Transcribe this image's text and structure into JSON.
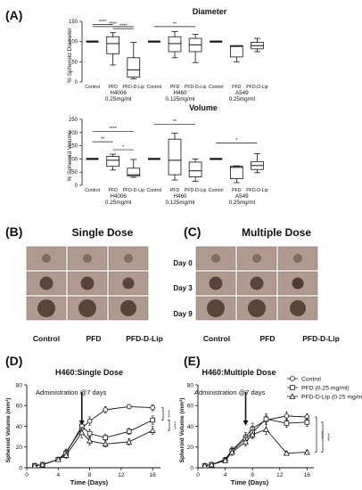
{
  "panels": {
    "A": "(A)",
    "B": "(B)",
    "C": "(C)",
    "D": "(D)",
    "E": "(E)"
  },
  "photo_grid": {
    "single_title": "Single Dose",
    "multiple_title": "Multiple Dose",
    "days": [
      "Day 0",
      "Day 3",
      "Day 9"
    ],
    "columns": [
      "Control",
      "PFD",
      "PFD-D-Lip"
    ]
  },
  "chart_data": [
    {
      "type": "box",
      "title": "Diameter",
      "ylabel": "% Spheroid Diameter",
      "ylim": [
        0,
        150
      ],
      "yticks": [
        0,
        50,
        100,
        150
      ],
      "groups": [
        {
          "label_line1": "H4006",
          "label_line2": "0.25mg/ml",
          "categories": [
            "Control",
            "PFD",
            "PFD-D-Lip"
          ],
          "boxes": [
            {
              "min": 100,
              "q1": 100,
              "median": 100,
              "q3": 100,
              "max": 100
            },
            {
              "min": 42,
              "q1": 70,
              "median": 95,
              "q3": 112,
              "max": 122
            },
            {
              "min": 8,
              "q1": 12,
              "median": 30,
              "q3": 60,
              "max": 98
            }
          ]
        },
        {
          "label_line1": "H460",
          "label_line2": "0.125mg/ml",
          "categories": [
            "Control",
            "PFD",
            "PFD-D-Lip"
          ],
          "boxes": [
            {
              "min": 100,
              "q1": 100,
              "median": 100,
              "q3": 100,
              "max": 100
            },
            {
              "min": 60,
              "q1": 75,
              "median": 95,
              "q3": 112,
              "max": 125
            },
            {
              "min": 48,
              "q1": 75,
              "median": 92,
              "q3": 108,
              "max": 118
            }
          ]
        },
        {
          "label_line1": "A549",
          "label_line2": "0.25mg/ml",
          "categories": [
            "Control",
            "PFD",
            "PFD-D-Lip"
          ],
          "boxes": [
            {
              "min": 100,
              "q1": 100,
              "median": 100,
              "q3": 100,
              "max": 100
            },
            {
              "min": 50,
              "q1": 62,
              "median": 88,
              "q3": 90,
              "max": 90
            },
            {
              "min": 75,
              "q1": 82,
              "median": 90,
              "q3": 98,
              "max": 108
            }
          ]
        }
      ],
      "significance": [
        {
          "from": [
            0,
            0
          ],
          "to": [
            0,
            1
          ],
          "label": "****",
          "y": 142
        },
        {
          "from": [
            0,
            0
          ],
          "to": [
            0,
            2
          ],
          "label": "****",
          "y": 137
        },
        {
          "from": [
            0,
            1
          ],
          "to": [
            0,
            2
          ],
          "label": "****",
          "y": 132
        },
        {
          "from": [
            1,
            0
          ],
          "to": [
            1,
            2
          ],
          "label": "**",
          "y": 137
        }
      ]
    },
    {
      "type": "box",
      "title": "Volume",
      "ylabel": "% Spheroid Volume",
      "ylim": [
        0,
        250
      ],
      "yticks": [
        0,
        50,
        100,
        150,
        200,
        250
      ],
      "groups": [
        {
          "label_line1": "H4006",
          "label_line2": "0.25mg/ml",
          "categories": [
            "Control",
            "PFD",
            "PFD-D-Lip"
          ],
          "boxes": [
            {
              "min": 100,
              "q1": 100,
              "median": 100,
              "q3": 100,
              "max": 100
            },
            {
              "min": 58,
              "q1": 72,
              "median": 95,
              "q3": 110,
              "max": 118
            },
            {
              "min": 30,
              "q1": 35,
              "median": 40,
              "q3": 65,
              "max": 98
            }
          ]
        },
        {
          "label_line1": "H460",
          "label_line2": "0.125mg/ml",
          "categories": [
            "Control",
            "PFD",
            "PFD-D-Lip"
          ],
          "boxes": [
            {
              "min": 100,
              "q1": 100,
              "median": 100,
              "q3": 100,
              "max": 100
            },
            {
              "min": 20,
              "q1": 40,
              "median": 95,
              "q3": 175,
              "max": 198
            },
            {
              "min": 15,
              "q1": 32,
              "median": 55,
              "q3": 88,
              "max": 100
            }
          ]
        },
        {
          "label_line1": "A549",
          "label_line2": "0.25mg/ml",
          "categories": [
            "Control",
            "PFD",
            "PFD-D-Lip"
          ],
          "boxes": [
            {
              "min": 100,
              "q1": 100,
              "median": 100,
              "q3": 100,
              "max": 100
            },
            {
              "min": 10,
              "q1": 25,
              "median": 68,
              "q3": 72,
              "max": 74
            },
            {
              "min": 48,
              "q1": 60,
              "median": 75,
              "q3": 90,
              "max": 120
            }
          ]
        }
      ],
      "significance": [
        {
          "from": [
            0,
            0
          ],
          "to": [
            0,
            1
          ],
          "label": "**",
          "y": 165
        },
        {
          "from": [
            0,
            0
          ],
          "to": [
            0,
            2
          ],
          "label": "****",
          "y": 205
        },
        {
          "from": [
            0,
            1
          ],
          "to": [
            0,
            2
          ],
          "label": "*",
          "y": 135
        },
        {
          "from": [
            1,
            0
          ],
          "to": [
            1,
            2
          ],
          "label": "**",
          "y": 232
        },
        {
          "from": [
            2,
            0
          ],
          "to": [
            2,
            2
          ],
          "label": "*",
          "y": 160
        }
      ]
    },
    {
      "type": "line",
      "title": "H460:Single Dose",
      "xlabel": "Time (Days)",
      "ylabel": "Spheroid Volume (mm³)",
      "xlim": [
        0,
        17
      ],
      "ylim": [
        0,
        80
      ],
      "xticks": [
        0,
        4,
        8,
        12,
        16
      ],
      "yticks": [
        0,
        20,
        40,
        60,
        80
      ],
      "annotation": "Administration @7 days",
      "annotation_x": 7,
      "x": [
        1,
        2,
        4,
        5,
        7,
        8,
        10,
        13,
        16
      ],
      "series": [
        {
          "name": "Control",
          "marker": "circle",
          "values": [
            2,
            3,
            8,
            15,
            38,
            45,
            56,
            59,
            58
          ],
          "err": [
            1,
            1,
            2,
            3,
            4,
            4,
            3,
            2,
            3
          ]
        },
        {
          "name": "PFD (0.25 mg/ml)",
          "marker": "square",
          "values": [
            2,
            3,
            8,
            14,
            40,
            33,
            29,
            35,
            46
          ],
          "err": [
            1,
            1,
            2,
            3,
            5,
            4,
            3,
            3,
            4
          ]
        },
        {
          "name": "PFD-D-Lip (0.25 mg/ml)",
          "marker": "triangle",
          "values": [
            2,
            3,
            8,
            12,
            34,
            26,
            23,
            25,
            36
          ],
          "err": [
            1,
            1,
            2,
            3,
            5,
            4,
            3,
            3,
            4
          ]
        }
      ],
      "significance": [
        {
          "label": "****",
          "y0": 58,
          "y1": 46
        },
        {
          "label": "****",
          "y0": 46,
          "y1": 36
        }
      ]
    },
    {
      "type": "line",
      "title": "H460:Multiple Dose",
      "xlabel": "Time (Days)",
      "ylabel": "Spheroid Volume (mm³)",
      "xlim": [
        0,
        17
      ],
      "ylim": [
        0,
        80
      ],
      "xticks": [
        0,
        4,
        8,
        12,
        16
      ],
      "yticks": [
        0,
        20,
        40,
        60,
        80
      ],
      "annotation": "Administration @7 days",
      "annotation_x": 7,
      "legend_position": "top-right",
      "x": [
        1,
        2,
        4,
        5,
        7,
        8,
        10,
        13,
        16
      ],
      "series": [
        {
          "name": "Control",
          "marker": "circle",
          "values": [
            2,
            3,
            8,
            17,
            30,
            38,
            46,
            50,
            49
          ],
          "err": [
            1,
            1,
            2,
            3,
            4,
            5,
            4,
            4,
            3
          ]
        },
        {
          "name": "PFD (0.25 mg/ml)",
          "marker": "square",
          "values": [
            2,
            3,
            7,
            16,
            28,
            34,
            47,
            43,
            44
          ],
          "err": [
            1,
            1,
            2,
            3,
            4,
            5,
            5,
            4,
            4
          ]
        },
        {
          "name": "PFD-D-Lip (0.25 mg/ml)",
          "marker": "triangle",
          "values": [
            2,
            3,
            7,
            15,
            25,
            32,
            37,
            14,
            15
          ],
          "err": [
            1,
            1,
            2,
            3,
            4,
            4,
            5,
            2,
            2
          ]
        }
      ],
      "significance": [
        {
          "label": "****",
          "y0": 49,
          "y1": 15
        },
        {
          "label": "****",
          "y0": 44,
          "y1": 15
        }
      ]
    }
  ]
}
